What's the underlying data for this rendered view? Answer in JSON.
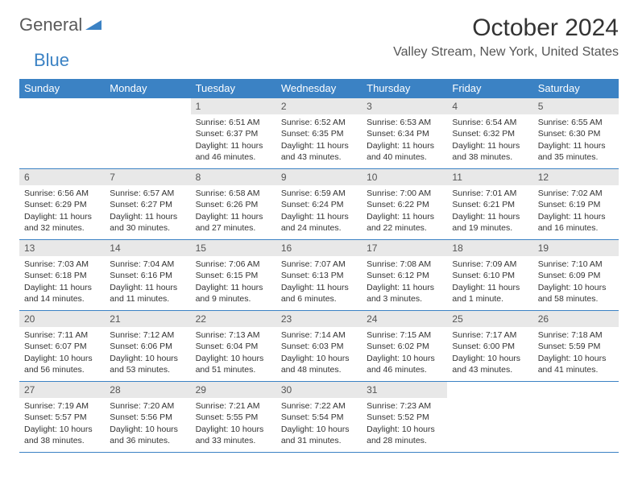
{
  "logo": {
    "general": "General",
    "blue": "Blue"
  },
  "title": "October 2024",
  "location": "Valley Stream, New York, United States",
  "colors": {
    "header_bg": "#3b82c4",
    "header_fg": "#ffffff",
    "daynum_bg": "#e8e8e8",
    "border": "#3b82c4",
    "text": "#333333",
    "logo_gray": "#5a5a5a",
    "logo_blue": "#3b82c4",
    "background": "#ffffff"
  },
  "weekdays": [
    "Sunday",
    "Monday",
    "Tuesday",
    "Wednesday",
    "Thursday",
    "Friday",
    "Saturday"
  ],
  "weeks": [
    [
      null,
      null,
      {
        "n": "1",
        "sunrise": "Sunrise: 6:51 AM",
        "sunset": "Sunset: 6:37 PM",
        "day1": "Daylight: 11 hours",
        "day2": "and 46 minutes."
      },
      {
        "n": "2",
        "sunrise": "Sunrise: 6:52 AM",
        "sunset": "Sunset: 6:35 PM",
        "day1": "Daylight: 11 hours",
        "day2": "and 43 minutes."
      },
      {
        "n": "3",
        "sunrise": "Sunrise: 6:53 AM",
        "sunset": "Sunset: 6:34 PM",
        "day1": "Daylight: 11 hours",
        "day2": "and 40 minutes."
      },
      {
        "n": "4",
        "sunrise": "Sunrise: 6:54 AM",
        "sunset": "Sunset: 6:32 PM",
        "day1": "Daylight: 11 hours",
        "day2": "and 38 minutes."
      },
      {
        "n": "5",
        "sunrise": "Sunrise: 6:55 AM",
        "sunset": "Sunset: 6:30 PM",
        "day1": "Daylight: 11 hours",
        "day2": "and 35 minutes."
      }
    ],
    [
      {
        "n": "6",
        "sunrise": "Sunrise: 6:56 AM",
        "sunset": "Sunset: 6:29 PM",
        "day1": "Daylight: 11 hours",
        "day2": "and 32 minutes."
      },
      {
        "n": "7",
        "sunrise": "Sunrise: 6:57 AM",
        "sunset": "Sunset: 6:27 PM",
        "day1": "Daylight: 11 hours",
        "day2": "and 30 minutes."
      },
      {
        "n": "8",
        "sunrise": "Sunrise: 6:58 AM",
        "sunset": "Sunset: 6:26 PM",
        "day1": "Daylight: 11 hours",
        "day2": "and 27 minutes."
      },
      {
        "n": "9",
        "sunrise": "Sunrise: 6:59 AM",
        "sunset": "Sunset: 6:24 PM",
        "day1": "Daylight: 11 hours",
        "day2": "and 24 minutes."
      },
      {
        "n": "10",
        "sunrise": "Sunrise: 7:00 AM",
        "sunset": "Sunset: 6:22 PM",
        "day1": "Daylight: 11 hours",
        "day2": "and 22 minutes."
      },
      {
        "n": "11",
        "sunrise": "Sunrise: 7:01 AM",
        "sunset": "Sunset: 6:21 PM",
        "day1": "Daylight: 11 hours",
        "day2": "and 19 minutes."
      },
      {
        "n": "12",
        "sunrise": "Sunrise: 7:02 AM",
        "sunset": "Sunset: 6:19 PM",
        "day1": "Daylight: 11 hours",
        "day2": "and 16 minutes."
      }
    ],
    [
      {
        "n": "13",
        "sunrise": "Sunrise: 7:03 AM",
        "sunset": "Sunset: 6:18 PM",
        "day1": "Daylight: 11 hours",
        "day2": "and 14 minutes."
      },
      {
        "n": "14",
        "sunrise": "Sunrise: 7:04 AM",
        "sunset": "Sunset: 6:16 PM",
        "day1": "Daylight: 11 hours",
        "day2": "and 11 minutes."
      },
      {
        "n": "15",
        "sunrise": "Sunrise: 7:06 AM",
        "sunset": "Sunset: 6:15 PM",
        "day1": "Daylight: 11 hours",
        "day2": "and 9 minutes."
      },
      {
        "n": "16",
        "sunrise": "Sunrise: 7:07 AM",
        "sunset": "Sunset: 6:13 PM",
        "day1": "Daylight: 11 hours",
        "day2": "and 6 minutes."
      },
      {
        "n": "17",
        "sunrise": "Sunrise: 7:08 AM",
        "sunset": "Sunset: 6:12 PM",
        "day1": "Daylight: 11 hours",
        "day2": "and 3 minutes."
      },
      {
        "n": "18",
        "sunrise": "Sunrise: 7:09 AM",
        "sunset": "Sunset: 6:10 PM",
        "day1": "Daylight: 11 hours",
        "day2": "and 1 minute."
      },
      {
        "n": "19",
        "sunrise": "Sunrise: 7:10 AM",
        "sunset": "Sunset: 6:09 PM",
        "day1": "Daylight: 10 hours",
        "day2": "and 58 minutes."
      }
    ],
    [
      {
        "n": "20",
        "sunrise": "Sunrise: 7:11 AM",
        "sunset": "Sunset: 6:07 PM",
        "day1": "Daylight: 10 hours",
        "day2": "and 56 minutes."
      },
      {
        "n": "21",
        "sunrise": "Sunrise: 7:12 AM",
        "sunset": "Sunset: 6:06 PM",
        "day1": "Daylight: 10 hours",
        "day2": "and 53 minutes."
      },
      {
        "n": "22",
        "sunrise": "Sunrise: 7:13 AM",
        "sunset": "Sunset: 6:04 PM",
        "day1": "Daylight: 10 hours",
        "day2": "and 51 minutes."
      },
      {
        "n": "23",
        "sunrise": "Sunrise: 7:14 AM",
        "sunset": "Sunset: 6:03 PM",
        "day1": "Daylight: 10 hours",
        "day2": "and 48 minutes."
      },
      {
        "n": "24",
        "sunrise": "Sunrise: 7:15 AM",
        "sunset": "Sunset: 6:02 PM",
        "day1": "Daylight: 10 hours",
        "day2": "and 46 minutes."
      },
      {
        "n": "25",
        "sunrise": "Sunrise: 7:17 AM",
        "sunset": "Sunset: 6:00 PM",
        "day1": "Daylight: 10 hours",
        "day2": "and 43 minutes."
      },
      {
        "n": "26",
        "sunrise": "Sunrise: 7:18 AM",
        "sunset": "Sunset: 5:59 PM",
        "day1": "Daylight: 10 hours",
        "day2": "and 41 minutes."
      }
    ],
    [
      {
        "n": "27",
        "sunrise": "Sunrise: 7:19 AM",
        "sunset": "Sunset: 5:57 PM",
        "day1": "Daylight: 10 hours",
        "day2": "and 38 minutes."
      },
      {
        "n": "28",
        "sunrise": "Sunrise: 7:20 AM",
        "sunset": "Sunset: 5:56 PM",
        "day1": "Daylight: 10 hours",
        "day2": "and 36 minutes."
      },
      {
        "n": "29",
        "sunrise": "Sunrise: 7:21 AM",
        "sunset": "Sunset: 5:55 PM",
        "day1": "Daylight: 10 hours",
        "day2": "and 33 minutes."
      },
      {
        "n": "30",
        "sunrise": "Sunrise: 7:22 AM",
        "sunset": "Sunset: 5:54 PM",
        "day1": "Daylight: 10 hours",
        "day2": "and 31 minutes."
      },
      {
        "n": "31",
        "sunrise": "Sunrise: 7:23 AM",
        "sunset": "Sunset: 5:52 PM",
        "day1": "Daylight: 10 hours",
        "day2": "and 28 minutes."
      },
      null,
      null
    ]
  ]
}
